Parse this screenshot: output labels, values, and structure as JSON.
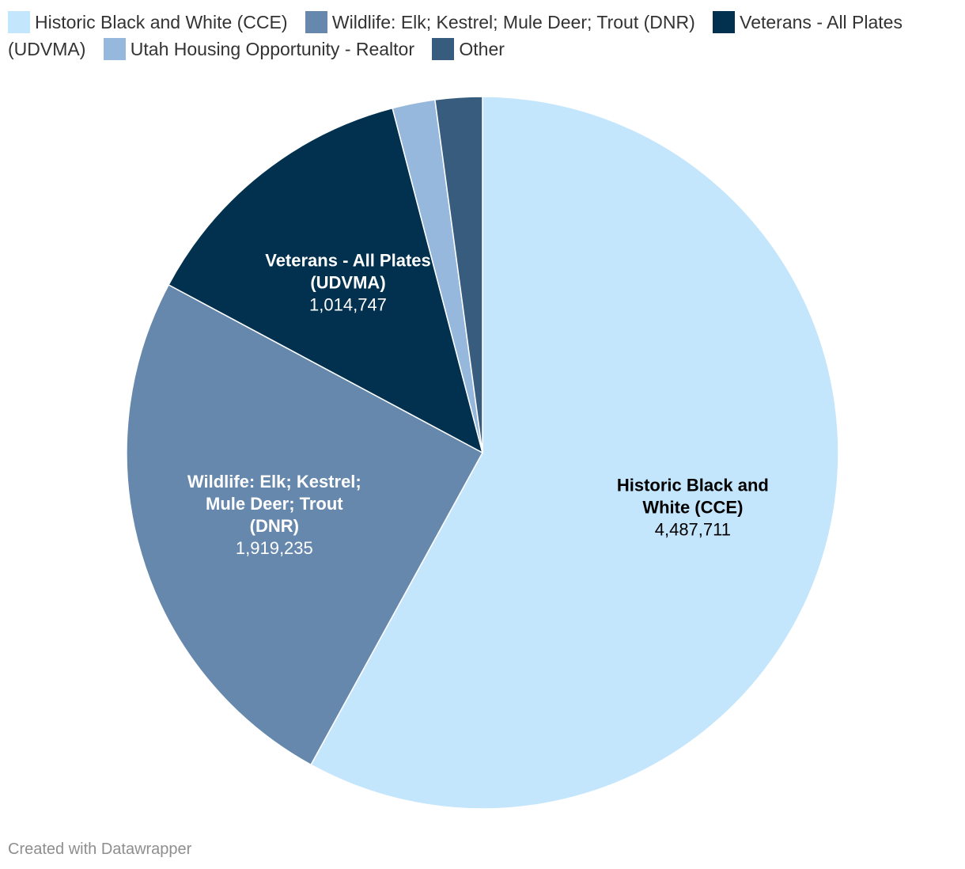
{
  "chart_data": {
    "type": "pie",
    "categories": [
      "Historic Black and White (CCE)",
      "Wildlife: Elk; Kestrel; Mule Deer; Trout (DNR)",
      "Veterans - All Plates (UDVMA)",
      "Utah Housing Opportunity - Realtor",
      "Other"
    ],
    "values": [
      4487711,
      1919235,
      1014747,
      150000,
      165000
    ],
    "value_labels": [
      "4,487,711",
      "1,919,235",
      "1,014,747",
      "",
      ""
    ],
    "label_lines": [
      [
        "Historic Black and",
        "White (CCE)"
      ],
      [
        "Wildlife: Elk; Kestrel;",
        "Mule Deer; Trout",
        "(DNR)"
      ],
      [
        "Veterans - All Plates",
        "(UDVMA)"
      ],
      [],
      []
    ],
    "colors": [
      "#c4e6fc",
      "#6688ad",
      "#01314f",
      "#97b8dd",
      "#375c7e"
    ],
    "label_colors": [
      "#000000",
      "#ffffff",
      "#ffffff",
      "#ffffff",
      "#ffffff"
    ],
    "legend_placement": "top-left",
    "start_angle_deg": 0,
    "direction": "clockwise"
  },
  "footer": {
    "credit": "Created with Datawrapper"
  }
}
